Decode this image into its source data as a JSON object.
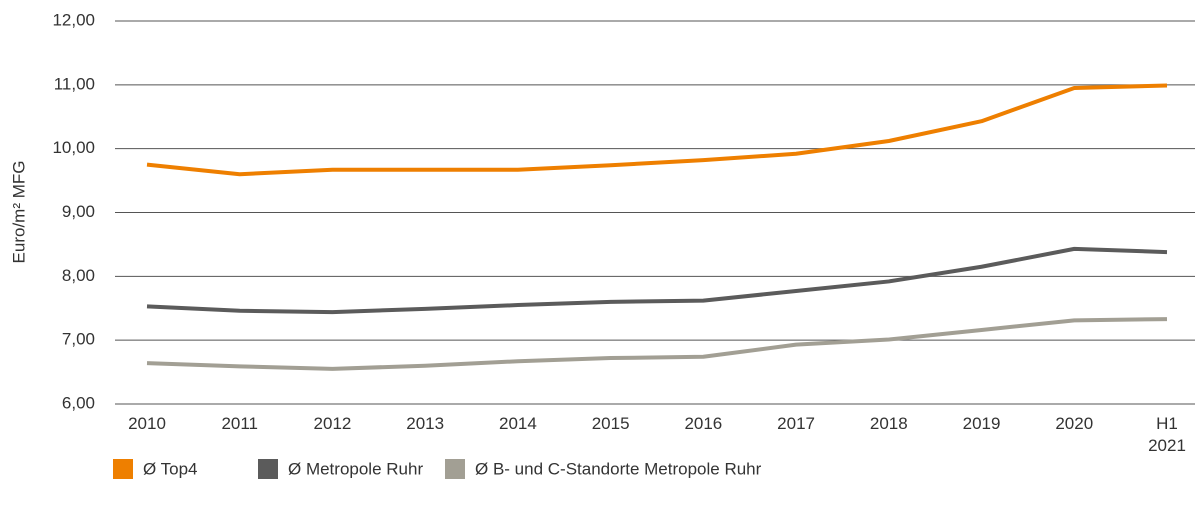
{
  "chart_data": {
    "type": "line",
    "y_label": "Euro/m² MFG",
    "categories": [
      "2010",
      "2011",
      "2012",
      "2013",
      "2014",
      "2015",
      "2016",
      "2017",
      "2018",
      "2019",
      "2020",
      "H1 2021"
    ],
    "series": [
      {
        "name": "Ø Top4",
        "color": "#ee7f00",
        "values": [
          9.75,
          9.6,
          9.67,
          9.67,
          9.67,
          9.74,
          9.82,
          9.92,
          10.12,
          10.43,
          10.95,
          10.99
        ]
      },
      {
        "name": "Ø Metropole Ruhr",
        "color": "#5b5b5b",
        "values": [
          7.53,
          7.46,
          7.44,
          7.49,
          7.55,
          7.6,
          7.62,
          7.77,
          7.92,
          8.15,
          8.43,
          8.38
        ]
      },
      {
        "name": "Ø B- und C-Standorte Metropole Ruhr",
        "color": "#a29f94",
        "values": [
          6.64,
          6.59,
          6.55,
          6.6,
          6.67,
          6.72,
          6.74,
          6.93,
          7.01,
          7.16,
          7.31,
          7.33
        ]
      }
    ],
    "ylim": [
      6,
      12
    ],
    "yticks": [
      {
        "value": 6,
        "label": "6,00"
      },
      {
        "value": 7,
        "label": "7,00"
      },
      {
        "value": 8,
        "label": "8,00"
      },
      {
        "value": 9,
        "label": "9,00"
      },
      {
        "value": 10,
        "label": "10,00"
      },
      {
        "value": 11,
        "label": "11,00"
      },
      {
        "value": 12,
        "label": "12,00"
      }
    ],
    "grid": true,
    "legend": "bottom"
  }
}
